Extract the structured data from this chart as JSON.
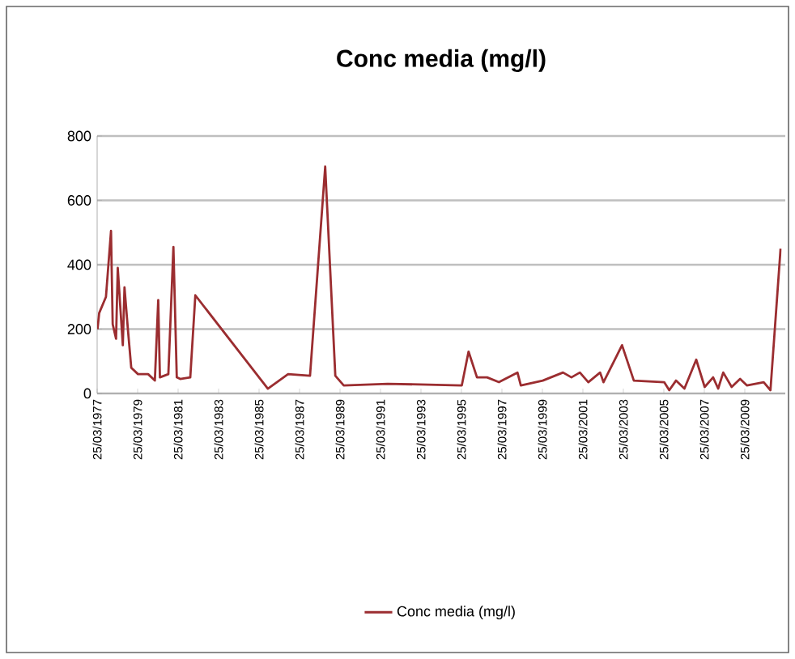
{
  "chart_data": {
    "type": "line",
    "title": "Conc media (mg/l)",
    "x": [
      "1977-04",
      "1977-05",
      "1977-09",
      "1977-12",
      "1978-01",
      "1978-03",
      "1978-04",
      "1978-07",
      "1978-08",
      "1978-10",
      "1978-12",
      "1979-04",
      "1979-10",
      "1980-02",
      "1980-04",
      "1980-05",
      "1980-10",
      "1981-01",
      "1981-03",
      "1981-05",
      "1981-11",
      "1982-02",
      "1985-09",
      "1986-09",
      "1987-10",
      "1988-07",
      "1989-01",
      "1989-06",
      "1991-08",
      "1995-04",
      "1995-08",
      "1996-01",
      "1996-07",
      "1997-02",
      "1998-01",
      "1998-03",
      "1999-04",
      "2000-04",
      "2000-09",
      "2001-02",
      "2001-07",
      "2002-02",
      "2002-04",
      "2003-03",
      "2003-10",
      "2005-04",
      "2005-07",
      "2005-11",
      "2006-04",
      "2006-11",
      "2007-04",
      "2007-09",
      "2007-12",
      "2008-03",
      "2008-08",
      "2009-01",
      "2009-05",
      "2010-03",
      "2010-07",
      "2011-01"
    ],
    "series": [
      {
        "name": "Conc media (mg/l)",
        "color": "#9b2d30",
        "values": [
          200,
          250,
          300,
          505,
          215,
          170,
          390,
          150,
          330,
          200,
          80,
          60,
          60,
          40,
          290,
          50,
          60,
          455,
          50,
          45,
          50,
          305,
          15,
          60,
          55,
          705,
          55,
          25,
          30,
          25,
          130,
          50,
          50,
          35,
          65,
          25,
          40,
          65,
          50,
          65,
          35,
          65,
          35,
          150,
          40,
          35,
          10,
          40,
          15,
          105,
          20,
          50,
          15,
          65,
          20,
          45,
          25,
          35,
          10,
          450
        ]
      }
    ],
    "xlim": [
      "1977-03-25",
      "2011-03-25"
    ],
    "xticks": [
      {
        "value": "1977-03-25",
        "label": "25/03/1977"
      },
      {
        "value": "1979-03-25",
        "label": "25/03/1979"
      },
      {
        "value": "1981-03-25",
        "label": "25/03/1981"
      },
      {
        "value": "1983-03-25",
        "label": "25/03/1983"
      },
      {
        "value": "1985-03-25",
        "label": "25/03/1985"
      },
      {
        "value": "1987-03-25",
        "label": "25/03/1987"
      },
      {
        "value": "1989-03-25",
        "label": "25/03/1989"
      },
      {
        "value": "1991-03-25",
        "label": "25/03/1991"
      },
      {
        "value": "1993-03-25",
        "label": "25/03/1993"
      },
      {
        "value": "1995-03-25",
        "label": "25/03/1995"
      },
      {
        "value": "1997-03-25",
        "label": "25/03/1997"
      },
      {
        "value": "1999-03-25",
        "label": "25/03/1999"
      },
      {
        "value": "2001-03-25",
        "label": "25/03/2001"
      },
      {
        "value": "2003-03-25",
        "label": "25/03/2003"
      },
      {
        "value": "2005-03-25",
        "label": "25/03/2005"
      },
      {
        "value": "2007-03-25",
        "label": "25/03/2007"
      },
      {
        "value": "2009-03-25",
        "label": "25/03/2009"
      }
    ],
    "ylim": [
      0,
      800
    ],
    "yticks": [
      0,
      200,
      400,
      600,
      800
    ],
    "grid": "y",
    "legend": "bottom",
    "marker": "none",
    "line_style": "solid"
  }
}
